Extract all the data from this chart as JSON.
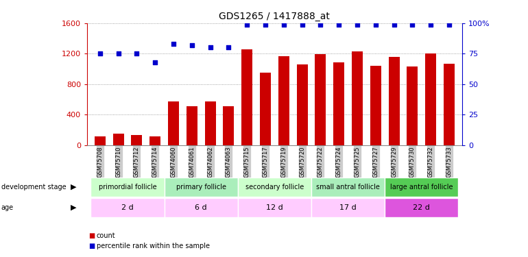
{
  "title": "GDS1265 / 1417888_at",
  "samples": [
    "GSM75708",
    "GSM75710",
    "GSM75712",
    "GSM75714",
    "GSM74060",
    "GSM74061",
    "GSM74062",
    "GSM74063",
    "GSM75715",
    "GSM75717",
    "GSM75719",
    "GSM75720",
    "GSM75722",
    "GSM75724",
    "GSM75725",
    "GSM75727",
    "GSM75729",
    "GSM75730",
    "GSM75732",
    "GSM75733"
  ],
  "counts": [
    120,
    155,
    130,
    115,
    570,
    510,
    575,
    510,
    1255,
    955,
    1165,
    1055,
    1195,
    1085,
    1225,
    1045,
    1155,
    1035,
    1205,
    1065
  ],
  "percentile": [
    75,
    75,
    75,
    68,
    83,
    82,
    80,
    80,
    99,
    99,
    99,
    99,
    99,
    99,
    99,
    99,
    99,
    99,
    99,
    99
  ],
  "bar_color": "#cc0000",
  "dot_color": "#0000cc",
  "ylim_left": [
    0,
    1600
  ],
  "ylim_right": [
    0,
    100
  ],
  "yticks_left": [
    0,
    400,
    800,
    1200,
    1600
  ],
  "yticks_right": [
    0,
    25,
    50,
    75,
    100
  ],
  "ytick_labels_right": [
    "0",
    "25",
    "50",
    "75",
    "100%"
  ],
  "groups": [
    {
      "label": "primordial follicle",
      "age": "2 d",
      "start": 0,
      "end": 4,
      "color": "#ccffcc",
      "age_color": "#ffccff"
    },
    {
      "label": "primary follicle",
      "age": "6 d",
      "start": 4,
      "end": 8,
      "color": "#aaeebb",
      "age_color": "#ffccff"
    },
    {
      "label": "secondary follicle",
      "age": "12 d",
      "start": 8,
      "end": 12,
      "color": "#ccffcc",
      "age_color": "#ffccff"
    },
    {
      "label": "small antral follicle",
      "age": "17 d",
      "start": 12,
      "end": 16,
      "color": "#aaeebb",
      "age_color": "#ffccff"
    },
    {
      "label": "large antral follicle",
      "age": "22 d",
      "start": 16,
      "end": 20,
      "color": "#55cc55",
      "age_color": "#dd55dd"
    }
  ],
  "grid_color": "#888888",
  "bg_color": "#ffffff",
  "tick_bg": "#cccccc"
}
